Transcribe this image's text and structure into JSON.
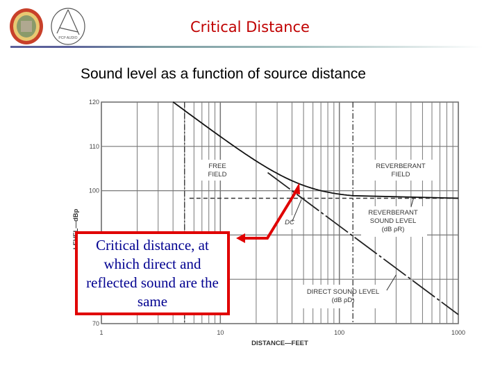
{
  "header": {
    "title": "Critical Distance",
    "logos": [
      "university-seal-logo",
      "pcp-audio-academy-logo"
    ],
    "logo_text": "PCP AUDIO ACADEMY"
  },
  "subtitle": "Sound level as a function of source distance",
  "callout": {
    "text": "Critical distance, at which direct and reflected sound are the same",
    "border_color": "#e00000",
    "text_color": "#000090"
  },
  "chart_data": {
    "type": "line",
    "xlabel": "DISTANCE—FEET",
    "ylabel": "LEVEL—dBp",
    "x_scale": "log",
    "xlim": [
      1,
      1000
    ],
    "ylim": [
      70,
      120
    ],
    "x_ticks": [
      "1",
      "10",
      "100",
      "1000"
    ],
    "y_ticks": [
      "120",
      "110",
      "100",
      "70"
    ],
    "grid": true,
    "reverberant_level_db": 98.3,
    "direct_source_ref": {
      "x": 4,
      "y": 120
    },
    "direct_slope_db_per_decade": -20,
    "free_field_boundary_ft": 5,
    "reverberant_field_boundary_ft": 130,
    "critical_distance_ft": 48,
    "series": [
      {
        "name": "total",
        "style": "solid"
      },
      {
        "name": "DIRECT SOUND LEVEL",
        "style": "dashed"
      },
      {
        "name": "REVERBERANT SOUND LEVEL",
        "style": "dashed"
      }
    ],
    "annotations": {
      "free_field": [
        "FREE",
        "FIELD"
      ],
      "reverberant_field": [
        "REVERBERANT",
        "FIELD"
      ],
      "reverberant_level": [
        "REVERBERANT",
        "SOUND LEVEL",
        "(dB ρR)"
      ],
      "direct_level": [
        "DIRECT SOUND LEVEL",
        "(dB ρD)"
      ],
      "dc": "DC"
    }
  }
}
